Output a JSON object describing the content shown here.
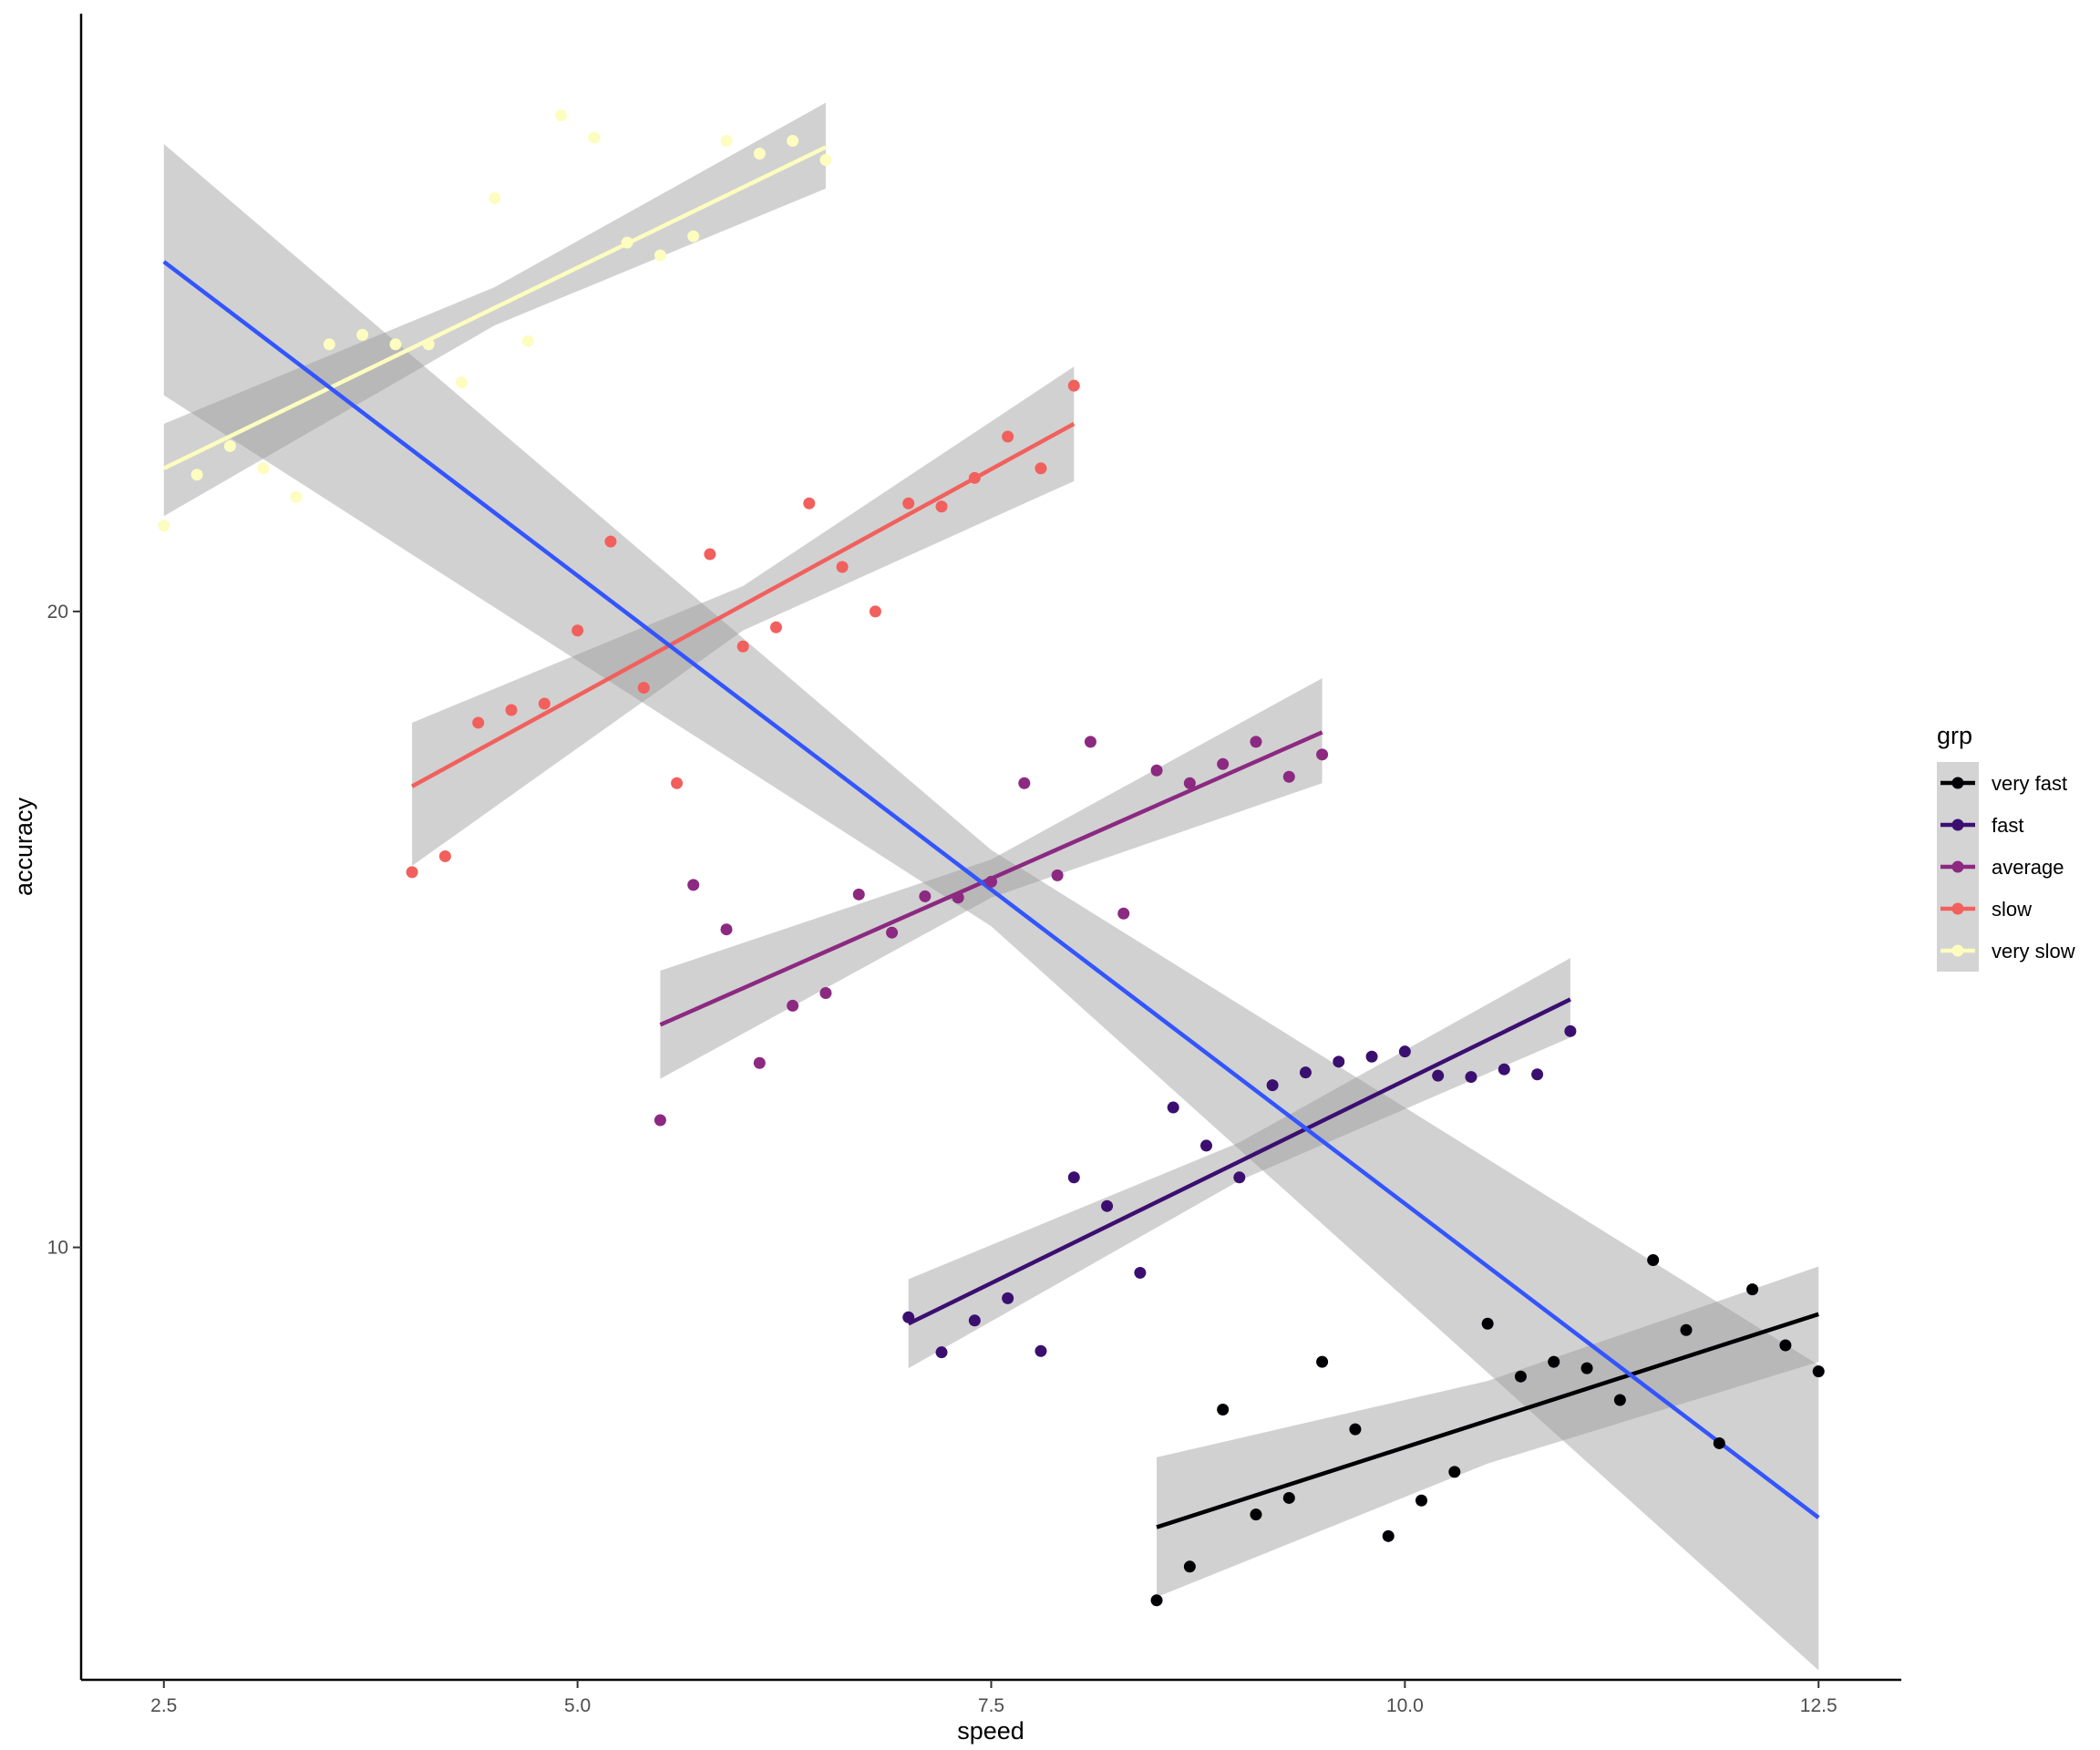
{
  "chart_data": {
    "type": "scatter",
    "xlabel": "speed",
    "ylabel": "accuracy",
    "xlim": [
      2.0,
      13.0
    ],
    "ylim": [
      3.2,
      29.4
    ],
    "x_ticks": [
      2.5,
      5.0,
      7.5,
      10.0,
      12.5
    ],
    "x_tick_labels": [
      "2.5",
      "5.0",
      "7.5",
      "10.0",
      "12.5"
    ],
    "y_ticks": [
      10,
      20
    ],
    "y_tick_labels": [
      "10",
      "20"
    ],
    "grid": false,
    "legend": {
      "title": "grp",
      "position": "right",
      "entries": [
        "very fast",
        "fast",
        "average",
        "slow",
        "very slow"
      ]
    },
    "series": [
      {
        "name": "very fast",
        "color": "#000004",
        "points": [
          [
            8.5,
            4.45
          ],
          [
            8.7,
            4.98
          ],
          [
            8.9,
            7.45
          ],
          [
            9.1,
            5.8
          ],
          [
            9.3,
            6.06
          ],
          [
            9.5,
            8.2
          ],
          [
            9.7,
            7.14
          ],
          [
            9.9,
            5.46
          ],
          [
            10.1,
            6.02
          ],
          [
            10.3,
            6.47
          ],
          [
            10.5,
            8.8
          ],
          [
            10.7,
            7.97
          ],
          [
            10.9,
            8.2
          ],
          [
            11.1,
            8.1
          ],
          [
            11.3,
            7.6
          ],
          [
            11.5,
            9.8
          ],
          [
            11.7,
            8.7
          ],
          [
            11.9,
            6.92
          ],
          [
            12.1,
            9.34
          ],
          [
            12.3,
            8.46
          ],
          [
            12.5,
            8.05
          ]
        ],
        "fit": {
          "x": [
            8.5,
            12.5
          ],
          "y": [
            5.6,
            8.95
          ]
        },
        "ci": {
          "x": [
            8.5,
            10.5,
            12.5
          ],
          "lower": [
            4.5,
            6.6,
            8.2
          ],
          "upper": [
            6.7,
            7.9,
            9.7
          ]
        }
      },
      {
        "name": "fast",
        "color": "#3b0f70",
        "points": [
          [
            7.0,
            8.9
          ],
          [
            7.2,
            8.35
          ],
          [
            7.4,
            8.85
          ],
          [
            7.6,
            9.2
          ],
          [
            7.8,
            8.37
          ],
          [
            8.0,
            11.1
          ],
          [
            8.2,
            10.65
          ],
          [
            8.4,
            9.6
          ],
          [
            8.6,
            12.2
          ],
          [
            8.8,
            11.6
          ],
          [
            9.0,
            11.1
          ],
          [
            9.2,
            12.55
          ],
          [
            9.4,
            12.75
          ],
          [
            9.6,
            12.92
          ],
          [
            9.8,
            13.0
          ],
          [
            10.0,
            13.08
          ],
          [
            10.2,
            12.7
          ],
          [
            10.4,
            12.68
          ],
          [
            10.6,
            12.8
          ],
          [
            10.8,
            12.72
          ],
          [
            11.0,
            13.4
          ]
        ],
        "fit": {
          "x": [
            7.0,
            11.0
          ],
          "y": [
            8.8,
            13.9
          ]
        },
        "ci": {
          "x": [
            7.0,
            9.0,
            11.0
          ],
          "lower": [
            8.1,
            11.05,
            13.3
          ],
          "upper": [
            9.5,
            11.65,
            14.55
          ]
        }
      },
      {
        "name": "average",
        "color": "#8c2981",
        "points": [
          [
            5.5,
            12.0
          ],
          [
            5.7,
            15.7
          ],
          [
            5.9,
            15.0
          ],
          [
            6.1,
            12.9
          ],
          [
            6.3,
            13.8
          ],
          [
            6.5,
            14.0
          ],
          [
            6.7,
            15.55
          ],
          [
            6.9,
            14.95
          ],
          [
            7.1,
            15.52
          ],
          [
            7.3,
            15.5
          ],
          [
            7.5,
            15.75
          ],
          [
            7.7,
            17.3
          ],
          [
            7.9,
            15.85
          ],
          [
            8.1,
            17.95
          ],
          [
            8.3,
            15.25
          ],
          [
            8.5,
            17.5
          ],
          [
            8.7,
            17.3
          ],
          [
            8.9,
            17.6
          ],
          [
            9.1,
            17.95
          ],
          [
            9.3,
            17.4
          ],
          [
            9.5,
            17.75
          ]
        ],
        "fit": {
          "x": [
            5.5,
            9.5
          ],
          "y": [
            13.5,
            18.1
          ]
        },
        "ci": {
          "x": [
            5.5,
            7.5,
            9.5
          ],
          "lower": [
            12.65,
            15.5,
            17.3
          ],
          "upper": [
            14.35,
            16.1,
            18.95
          ]
        }
      },
      {
        "name": "slow",
        "color": "#f1605d",
        "points": [
          [
            4.0,
            15.9
          ],
          [
            4.2,
            16.15
          ],
          [
            4.4,
            18.25
          ],
          [
            4.6,
            18.45
          ],
          [
            4.8,
            18.55
          ],
          [
            5.0,
            19.7
          ],
          [
            5.2,
            21.1
          ],
          [
            5.4,
            18.8
          ],
          [
            5.6,
            17.3
          ],
          [
            5.8,
            20.9
          ],
          [
            6.0,
            19.45
          ],
          [
            6.2,
            19.75
          ],
          [
            6.4,
            21.7
          ],
          [
            6.6,
            20.7
          ],
          [
            6.8,
            20.0
          ],
          [
            7.0,
            21.7
          ],
          [
            7.2,
            21.65
          ],
          [
            7.4,
            22.1
          ],
          [
            7.6,
            22.75
          ],
          [
            7.8,
            22.25
          ],
          [
            8.0,
            23.55
          ]
        ],
        "fit": {
          "x": [
            4.0,
            8.0
          ],
          "y": [
            17.25,
            22.95
          ]
        },
        "ci": {
          "x": [
            4.0,
            6.0,
            8.0
          ],
          "lower": [
            16.0,
            19.7,
            22.05
          ],
          "upper": [
            18.25,
            20.4,
            23.85
          ]
        }
      },
      {
        "name": "very slow",
        "color": "#fcfdbf",
        "points": [
          [
            2.5,
            21.35
          ],
          [
            2.7,
            22.15
          ],
          [
            2.9,
            22.6
          ],
          [
            3.1,
            22.25
          ],
          [
            3.3,
            21.8
          ],
          [
            3.5,
            24.2
          ],
          [
            3.7,
            24.35
          ],
          [
            3.9,
            24.2
          ],
          [
            4.1,
            24.2
          ],
          [
            4.3,
            23.6
          ],
          [
            4.5,
            26.5
          ],
          [
            4.7,
            24.25
          ],
          [
            4.9,
            27.8
          ],
          [
            5.1,
            27.45
          ],
          [
            5.3,
            25.8
          ],
          [
            5.5,
            25.6
          ],
          [
            5.7,
            25.9
          ],
          [
            5.9,
            27.4
          ],
          [
            6.1,
            27.2
          ],
          [
            6.3,
            27.4
          ],
          [
            6.5,
            27.1
          ]
        ],
        "fit": {
          "x": [
            2.5,
            6.5
          ],
          "y": [
            22.25,
            27.3
          ]
        },
        "ci": {
          "x": [
            2.5,
            4.5,
            6.5
          ],
          "lower": [
            21.5,
            24.5,
            26.65
          ],
          "upper": [
            22.95,
            25.1,
            28.0
          ]
        }
      },
      {
        "name": "overall",
        "color": "#3355ff",
        "fit": {
          "x": [
            2.5,
            12.5
          ],
          "y": [
            25.5,
            5.75
          ]
        },
        "ci": {
          "x": [
            2.5,
            7.5,
            12.5
          ],
          "lower": [
            23.4,
            15.05,
            3.35
          ],
          "upper": [
            27.35,
            16.25,
            8.15
          ]
        }
      }
    ]
  }
}
